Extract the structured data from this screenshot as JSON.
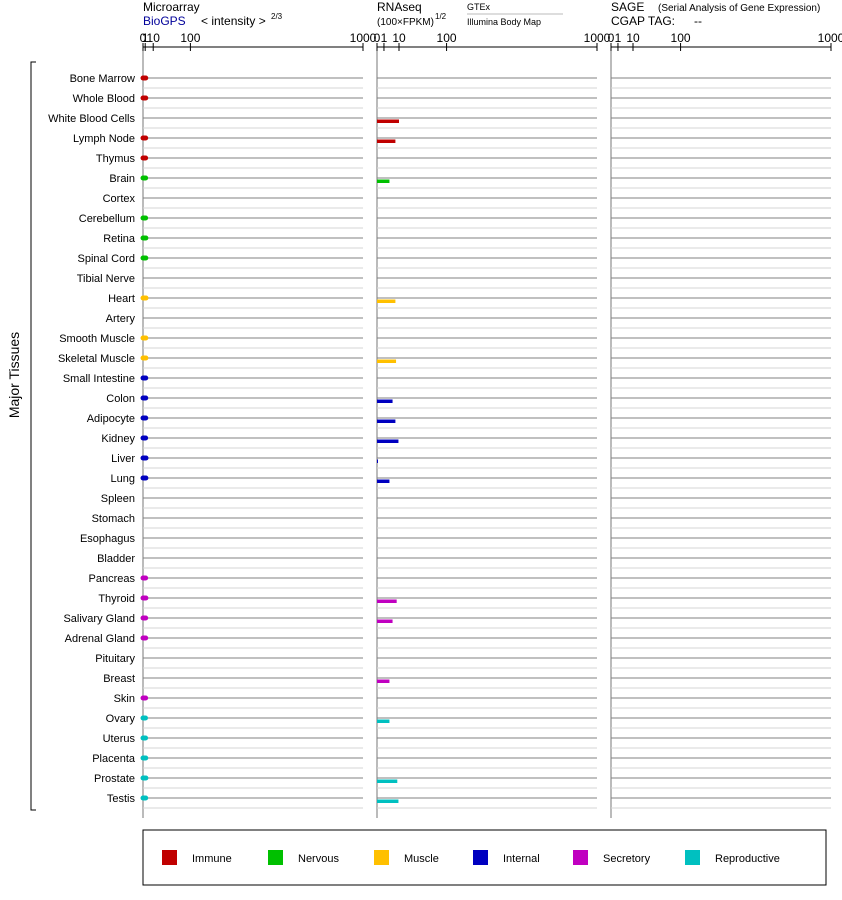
{
  "panels": {
    "microarray": {
      "title": "Microarray",
      "source": "BioGPS",
      "scale_label": "< intensity >",
      "scale_exp": "2/3"
    },
    "rnaseq": {
      "title": "RNAseq",
      "unit": "(100×FPKM)",
      "unit_exp": "1/2",
      "source_gtex": "GTEx",
      "source_ibm": "Illumina Body Map"
    },
    "sage": {
      "title": "SAGE",
      "subtitle": "(Serial Analysis of Gene Expression)",
      "tag_label": "CGAP TAG:",
      "tag_value": "--"
    }
  },
  "axis_ticks": [
    "0",
    "1",
    "10",
    "100",
    "1000"
  ],
  "y_axis_label": "Major Tissues",
  "legend": [
    {
      "key": "immune",
      "label": "Immune",
      "color": "#c00000"
    },
    {
      "key": "nervous",
      "label": "Nervous",
      "color": "#00c000"
    },
    {
      "key": "muscle",
      "label": "Muscle",
      "color": "#ffc000"
    },
    {
      "key": "internal",
      "label": "Internal",
      "color": "#0000c0"
    },
    {
      "key": "secretory",
      "label": "Secretory",
      "color": "#c000c0"
    },
    {
      "key": "reproductive",
      "label": "Reproductive",
      "color": "#00c0c0"
    }
  ],
  "chart_data": [
    {
      "type": "bar",
      "orientation": "horizontal",
      "panel": "microarray",
      "title": "Microarray",
      "xlabel": "< intensity >",
      "x_scale": "power-2/3",
      "xlim": [
        0,
        1000
      ],
      "categories": [
        "Bone Marrow",
        "Whole Blood",
        "White Blood Cells",
        "Lymph Node",
        "Thymus",
        "Brain",
        "Cortex",
        "Cerebellum",
        "Retina",
        "Spinal Cord",
        "Tibial Nerve",
        "Heart",
        "Artery",
        "Smooth Muscle",
        "Skeletal Muscle",
        "Small Intestine",
        "Colon",
        "Adipocyte",
        "Kidney",
        "Liver",
        "Lung",
        "Spleen",
        "Stomach",
        "Esophagus",
        "Bladder",
        "Pancreas",
        "Thyroid",
        "Salivary Gland",
        "Adrenal Gland",
        "Pituitary",
        "Breast",
        "Skin",
        "Ovary",
        "Uterus",
        "Placenta",
        "Prostate",
        "Testis"
      ],
      "groups": [
        "immune",
        "immune",
        "immune",
        "immune",
        "immune",
        "nervous",
        "nervous",
        "nervous",
        "nervous",
        "nervous",
        "nervous",
        "muscle",
        "muscle",
        "muscle",
        "muscle",
        "internal",
        "internal",
        "internal",
        "internal",
        "internal",
        "internal",
        "internal",
        "internal",
        "internal",
        "internal",
        "secretory",
        "secretory",
        "secretory",
        "secretory",
        "secretory",
        "secretory",
        "secretory",
        "reproductive",
        "reproductive",
        "reproductive",
        "reproductive",
        "reproductive"
      ],
      "values": [
        1.4,
        1.4,
        null,
        1.35,
        1.3,
        1.3,
        null,
        1.3,
        1.5,
        1.45,
        null,
        1.6,
        null,
        1.45,
        1.5,
        1.4,
        1.4,
        1.4,
        1.3,
        1.6,
        1.5,
        null,
        null,
        null,
        null,
        1.3,
        1.5,
        1.35,
        1.35,
        null,
        null,
        1.3,
        1.2,
        1.25,
        1.4,
        1.5,
        1.35
      ]
    },
    {
      "type": "bar",
      "orientation": "horizontal",
      "panel": "rnaseq",
      "title": "RNAseq",
      "xlabel": "(100×FPKM)",
      "x_scale": "power-1/2",
      "xlim": [
        0,
        1000
      ],
      "series": [
        {
          "name": "GTEx",
          "values": [
            null,
            null,
            null,
            null,
            null,
            null,
            null,
            null,
            null,
            null,
            null,
            null,
            null,
            null,
            null,
            null,
            null,
            null,
            null,
            null,
            null,
            null,
            null,
            null,
            null,
            null,
            null,
            null,
            null,
            null,
            null,
            null,
            null,
            null,
            null,
            null,
            null
          ]
        },
        {
          "name": "Illumina Body Map",
          "values": [
            null,
            null,
            10,
            7,
            null,
            3.2,
            null,
            null,
            null,
            null,
            null,
            7,
            null,
            null,
            7.5,
            null,
            5,
            7,
            9.5,
            0.01,
            3.2,
            null,
            null,
            null,
            null,
            null,
            8,
            5,
            null,
            null,
            3.2,
            null,
            3.2,
            null,
            null,
            8.5,
            9.5
          ]
        }
      ]
    },
    {
      "type": "bar",
      "orientation": "horizontal",
      "panel": "sage",
      "title": "SAGE",
      "xlim": [
        0,
        1000
      ],
      "values": []
    }
  ]
}
